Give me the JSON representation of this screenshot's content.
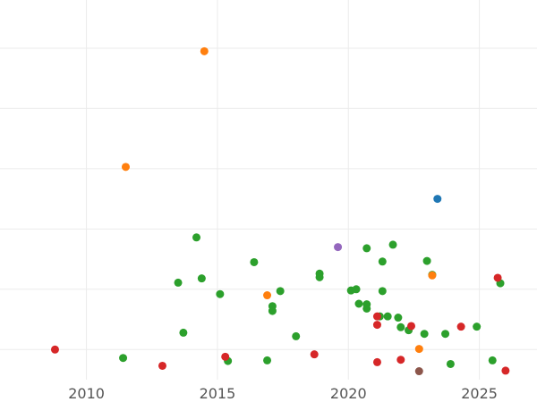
{
  "chart_data": {
    "type": "scatter",
    "title": "",
    "xlabel": "",
    "ylabel": "",
    "xlim": [
      2006.7,
      2027.2
    ],
    "ylim": [
      0,
      6.3
    ],
    "x_ticks": [
      2010,
      2015,
      2020,
      2025
    ],
    "x_tick_labels": [
      "2010",
      "2015",
      "2020",
      "2025"
    ],
    "y_gridlines": [
      0.5,
      1.5,
      2.5,
      3.5,
      4.5,
      5.5,
      6.5
    ],
    "grid": true,
    "legend": "none",
    "series": [
      {
        "color": "#2ca02c",
        "points": [
          [
            2011.4,
            0.36
          ],
          [
            2013.5,
            1.61
          ],
          [
            2013.7,
            0.78
          ],
          [
            2014.2,
            2.36
          ],
          [
            2014.4,
            1.68
          ],
          [
            2015.1,
            1.42
          ],
          [
            2015.4,
            0.31
          ],
          [
            2016.4,
            1.95
          ],
          [
            2016.9,
            0.32
          ],
          [
            2017.1,
            1.22
          ],
          [
            2017.1,
            1.14
          ],
          [
            2017.4,
            1.47
          ],
          [
            2018.0,
            0.72
          ],
          [
            2018.9,
            1.76
          ],
          [
            2018.9,
            1.7
          ],
          [
            2020.1,
            1.48
          ],
          [
            2020.3,
            1.5
          ],
          [
            2020.4,
            1.26
          ],
          [
            2020.7,
            1.25
          ],
          [
            2020.7,
            1.18
          ],
          [
            2020.7,
            2.18
          ],
          [
            2021.2,
            1.05
          ],
          [
            2021.3,
            1.47
          ],
          [
            2021.3,
            1.96
          ],
          [
            2021.5,
            1.05
          ],
          [
            2021.7,
            2.24
          ],
          [
            2021.9,
            1.03
          ],
          [
            2022.0,
            0.87
          ],
          [
            2022.3,
            0.82
          ],
          [
            2022.9,
            0.76
          ],
          [
            2023.0,
            1.97
          ],
          [
            2023.2,
            1.74
          ],
          [
            2023.7,
            0.76
          ],
          [
            2023.9,
            0.26
          ],
          [
            2024.9,
            0.88
          ],
          [
            2025.5,
            0.32
          ],
          [
            2025.8,
            1.6
          ]
        ]
      },
      {
        "color": "#d62728",
        "points": [
          [
            2008.8,
            0.5
          ],
          [
            2012.9,
            0.23
          ],
          [
            2015.3,
            0.38
          ],
          [
            2018.7,
            0.42
          ],
          [
            2021.1,
            1.05
          ],
          [
            2021.1,
            0.91
          ],
          [
            2021.1,
            0.29
          ],
          [
            2022.0,
            0.33
          ],
          [
            2022.4,
            0.89
          ],
          [
            2024.3,
            0.88
          ],
          [
            2025.7,
            1.69
          ],
          [
            2026.0,
            0.15
          ]
        ]
      },
      {
        "color": "#ff7f0e",
        "points": [
          [
            2011.5,
            3.53
          ],
          [
            2014.5,
            5.45
          ],
          [
            2016.9,
            1.4
          ],
          [
            2022.7,
            0.51
          ],
          [
            2023.2,
            1.73
          ]
        ]
      },
      {
        "color": "#1f77b4",
        "points": [
          [
            2023.4,
            3.0
          ]
        ]
      },
      {
        "color": "#9467bd",
        "points": [
          [
            2019.6,
            2.2
          ]
        ]
      },
      {
        "color": "#8c564b",
        "points": [
          [
            2022.7,
            0.14
          ]
        ]
      }
    ]
  }
}
